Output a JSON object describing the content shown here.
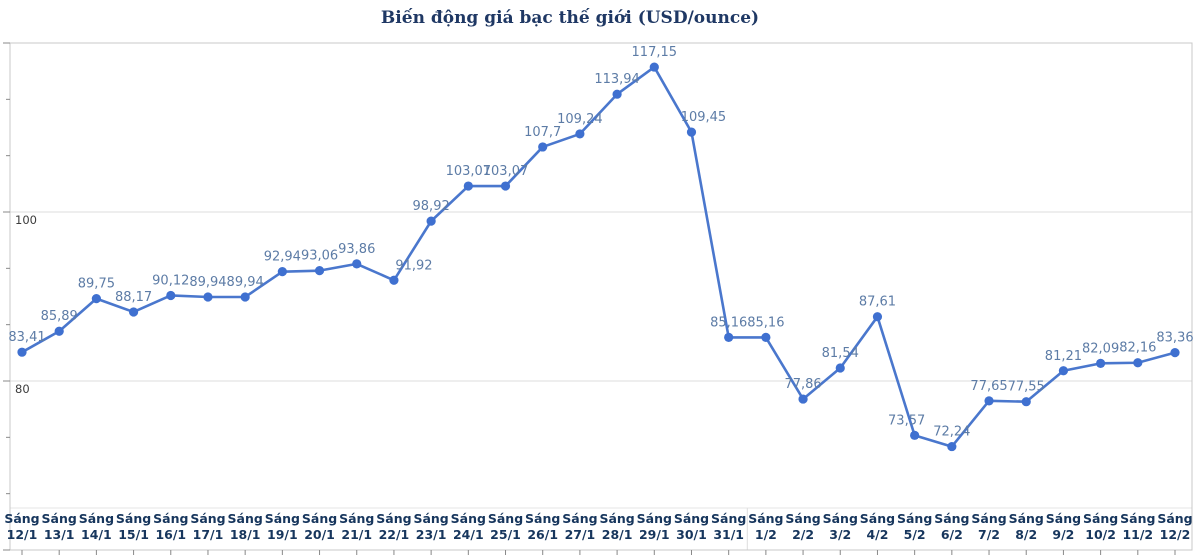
{
  "chart_data": {
    "type": "line",
    "title": "Biến động giá bạc thế giới (USD/ounce)",
    "categories": [
      "Sáng 12/1",
      "Sáng 13/1",
      "Sáng 14/1",
      "Sáng 15/1",
      "Sáng 16/1",
      "Sáng 17/1",
      "Sáng 18/1",
      "Sáng 19/1",
      "Sáng 20/1",
      "Sáng 21/1",
      "Sáng 22/1",
      "Sáng 23/1",
      "Sáng 24/1",
      "Sáng 25/1",
      "Sáng 26/1",
      "Sáng 27/1",
      "Sáng 28/1",
      "Sáng 29/1",
      "Sáng 30/1",
      "Sáng 31/1",
      "Sáng 1/2",
      "Sáng 2/2",
      "Sáng 3/2",
      "Sáng 4/2",
      "Sáng 5/2",
      "Sáng 6/2",
      "Sáng 7/2",
      "Sáng 8/2",
      "Sáng 9/2",
      "Sáng 10/2",
      "Sáng 11/2",
      "Sáng 12/2"
    ],
    "values": [
      83.41,
      85.89,
      89.75,
      88.17,
      90.12,
      89.94,
      89.94,
      92.94,
      93.06,
      93.86,
      91.92,
      98.92,
      103.07,
      103.07,
      107.7,
      109.24,
      113.94,
      117.15,
      109.45,
      85.16,
      85.16,
      77.86,
      81.54,
      87.61,
      73.57,
      72.24,
      77.65,
      77.55,
      81.21,
      82.09,
      82.16,
      83.36
    ],
    "data_label_decimal_separator": ",",
    "ylim": [
      60,
      120
    ],
    "y_tick_labels": [
      {
        "value": 100,
        "label": "100"
      },
      {
        "value": 80,
        "label": "80"
      }
    ],
    "grid": true,
    "legend_position": "none",
    "xlabel": "",
    "ylabel": ""
  },
  "colors": {
    "line": "#4a77cd",
    "marker": "#3f70d0",
    "data_label": "#5d7ca6",
    "x_axis_label": "#17365d",
    "y_axis_label": "#3c3c3c",
    "title": "#1f3864",
    "gridline": "#dcdcdc",
    "frame": "#c8c8c8",
    "tick": "#888888"
  }
}
